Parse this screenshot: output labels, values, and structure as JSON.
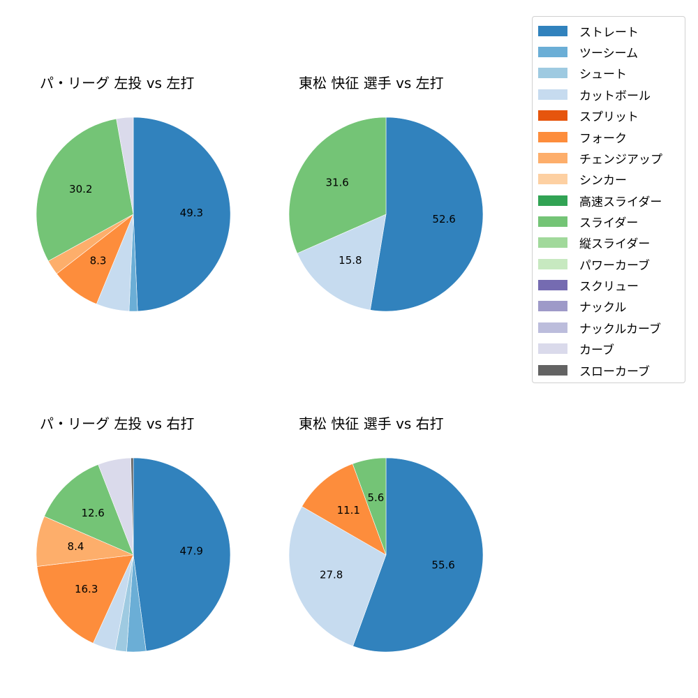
{
  "legend": {
    "items": [
      {
        "label": "ストレート",
        "color": "#3182bd"
      },
      {
        "label": "ツーシーム",
        "color": "#6baed6"
      },
      {
        "label": "シュート",
        "color": "#9ecae1"
      },
      {
        "label": "カットボール",
        "color": "#c6dbef"
      },
      {
        "label": "スプリット",
        "color": "#e6550d"
      },
      {
        "label": "フォーク",
        "color": "#fd8d3c"
      },
      {
        "label": "チェンジアップ",
        "color": "#fdae6b"
      },
      {
        "label": "シンカー",
        "color": "#fdd0a2"
      },
      {
        "label": "高速スライダー",
        "color": "#31a354"
      },
      {
        "label": "スライダー",
        "color": "#74c476"
      },
      {
        "label": "縦スライダー",
        "color": "#a1d99b"
      },
      {
        "label": "パワーカーブ",
        "color": "#c7e9c0"
      },
      {
        "label": "スクリュー",
        "color": "#756bb1"
      },
      {
        "label": "ナックル",
        "color": "#9e9ac8"
      },
      {
        "label": "ナックルカーブ",
        "color": "#bcbddc"
      },
      {
        "label": "カーブ",
        "color": "#dadaeb"
      },
      {
        "label": "スローカーブ",
        "color": "#636363"
      }
    ]
  },
  "chart_data": [
    {
      "type": "pie",
      "title": "パ・リーグ 左投 vs 左打",
      "start_angle": 90,
      "direction": "clockwise",
      "slices": [
        {
          "label": "ストレート",
          "value": 49.3,
          "color": "#3182bd",
          "show_label": true
        },
        {
          "label": "ツーシーム",
          "value": 1.4,
          "color": "#6baed6",
          "show_label": false
        },
        {
          "label": "カットボール",
          "value": 5.5,
          "color": "#c6dbef",
          "show_label": false
        },
        {
          "label": "フォーク",
          "value": 8.3,
          "color": "#fd8d3c",
          "show_label": true
        },
        {
          "label": "チェンジアップ",
          "value": 2.5,
          "color": "#fdae6b",
          "show_label": false
        },
        {
          "label": "スライダー",
          "value": 30.2,
          "color": "#74c476",
          "show_label": true
        },
        {
          "label": "カーブ",
          "value": 2.8,
          "color": "#dadaeb",
          "show_label": false
        }
      ]
    },
    {
      "type": "pie",
      "title": "東松 快征 選手 vs 左打",
      "start_angle": 90,
      "direction": "clockwise",
      "slices": [
        {
          "label": "ストレート",
          "value": 52.6,
          "color": "#3182bd",
          "show_label": true
        },
        {
          "label": "カットボール",
          "value": 15.8,
          "color": "#c6dbef",
          "show_label": true
        },
        {
          "label": "スライダー",
          "value": 31.6,
          "color": "#74c476",
          "show_label": true
        }
      ]
    },
    {
      "type": "pie",
      "title": "パ・リーグ 左投 vs 右打",
      "start_angle": 90,
      "direction": "clockwise",
      "slices": [
        {
          "label": "ストレート",
          "value": 47.9,
          "color": "#3182bd",
          "show_label": true
        },
        {
          "label": "ツーシーム",
          "value": 3.2,
          "color": "#6baed6",
          "show_label": false
        },
        {
          "label": "シュート",
          "value": 1.9,
          "color": "#9ecae1",
          "show_label": false
        },
        {
          "label": "カットボール",
          "value": 3.8,
          "color": "#c6dbef",
          "show_label": false
        },
        {
          "label": "フォーク",
          "value": 16.3,
          "color": "#fd8d3c",
          "show_label": true
        },
        {
          "label": "チェンジアップ",
          "value": 8.4,
          "color": "#fdae6b",
          "show_label": true
        },
        {
          "label": "スライダー",
          "value": 12.6,
          "color": "#74c476",
          "show_label": true
        },
        {
          "label": "カーブ",
          "value": 5.5,
          "color": "#dadaeb",
          "show_label": false
        },
        {
          "label": "スローカーブ",
          "value": 0.4,
          "color": "#636363",
          "show_label": false
        }
      ]
    },
    {
      "type": "pie",
      "title": "東松 快征 選手 vs 右打",
      "start_angle": 90,
      "direction": "clockwise",
      "slices": [
        {
          "label": "ストレート",
          "value": 55.6,
          "color": "#3182bd",
          "show_label": true
        },
        {
          "label": "カットボール",
          "value": 27.8,
          "color": "#c6dbef",
          "show_label": true
        },
        {
          "label": "フォーク",
          "value": 11.1,
          "color": "#fd8d3c",
          "show_label": true
        },
        {
          "label": "スライダー",
          "value": 5.6,
          "color": "#74c476",
          "show_label": true
        }
      ]
    }
  ]
}
